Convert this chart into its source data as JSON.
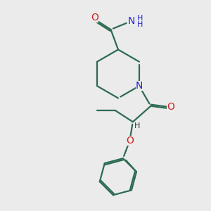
{
  "bg_color": "#ebebeb",
  "bond_color": "#2d6b52",
  "n_color": "#2222cc",
  "o_color": "#cc2222",
  "text_color": "#444444",
  "lw": 1.6,
  "xlim": [
    0,
    10
  ],
  "ylim": [
    0,
    10
  ],
  "figsize": [
    3.0,
    3.0
  ],
  "dpi": 100
}
